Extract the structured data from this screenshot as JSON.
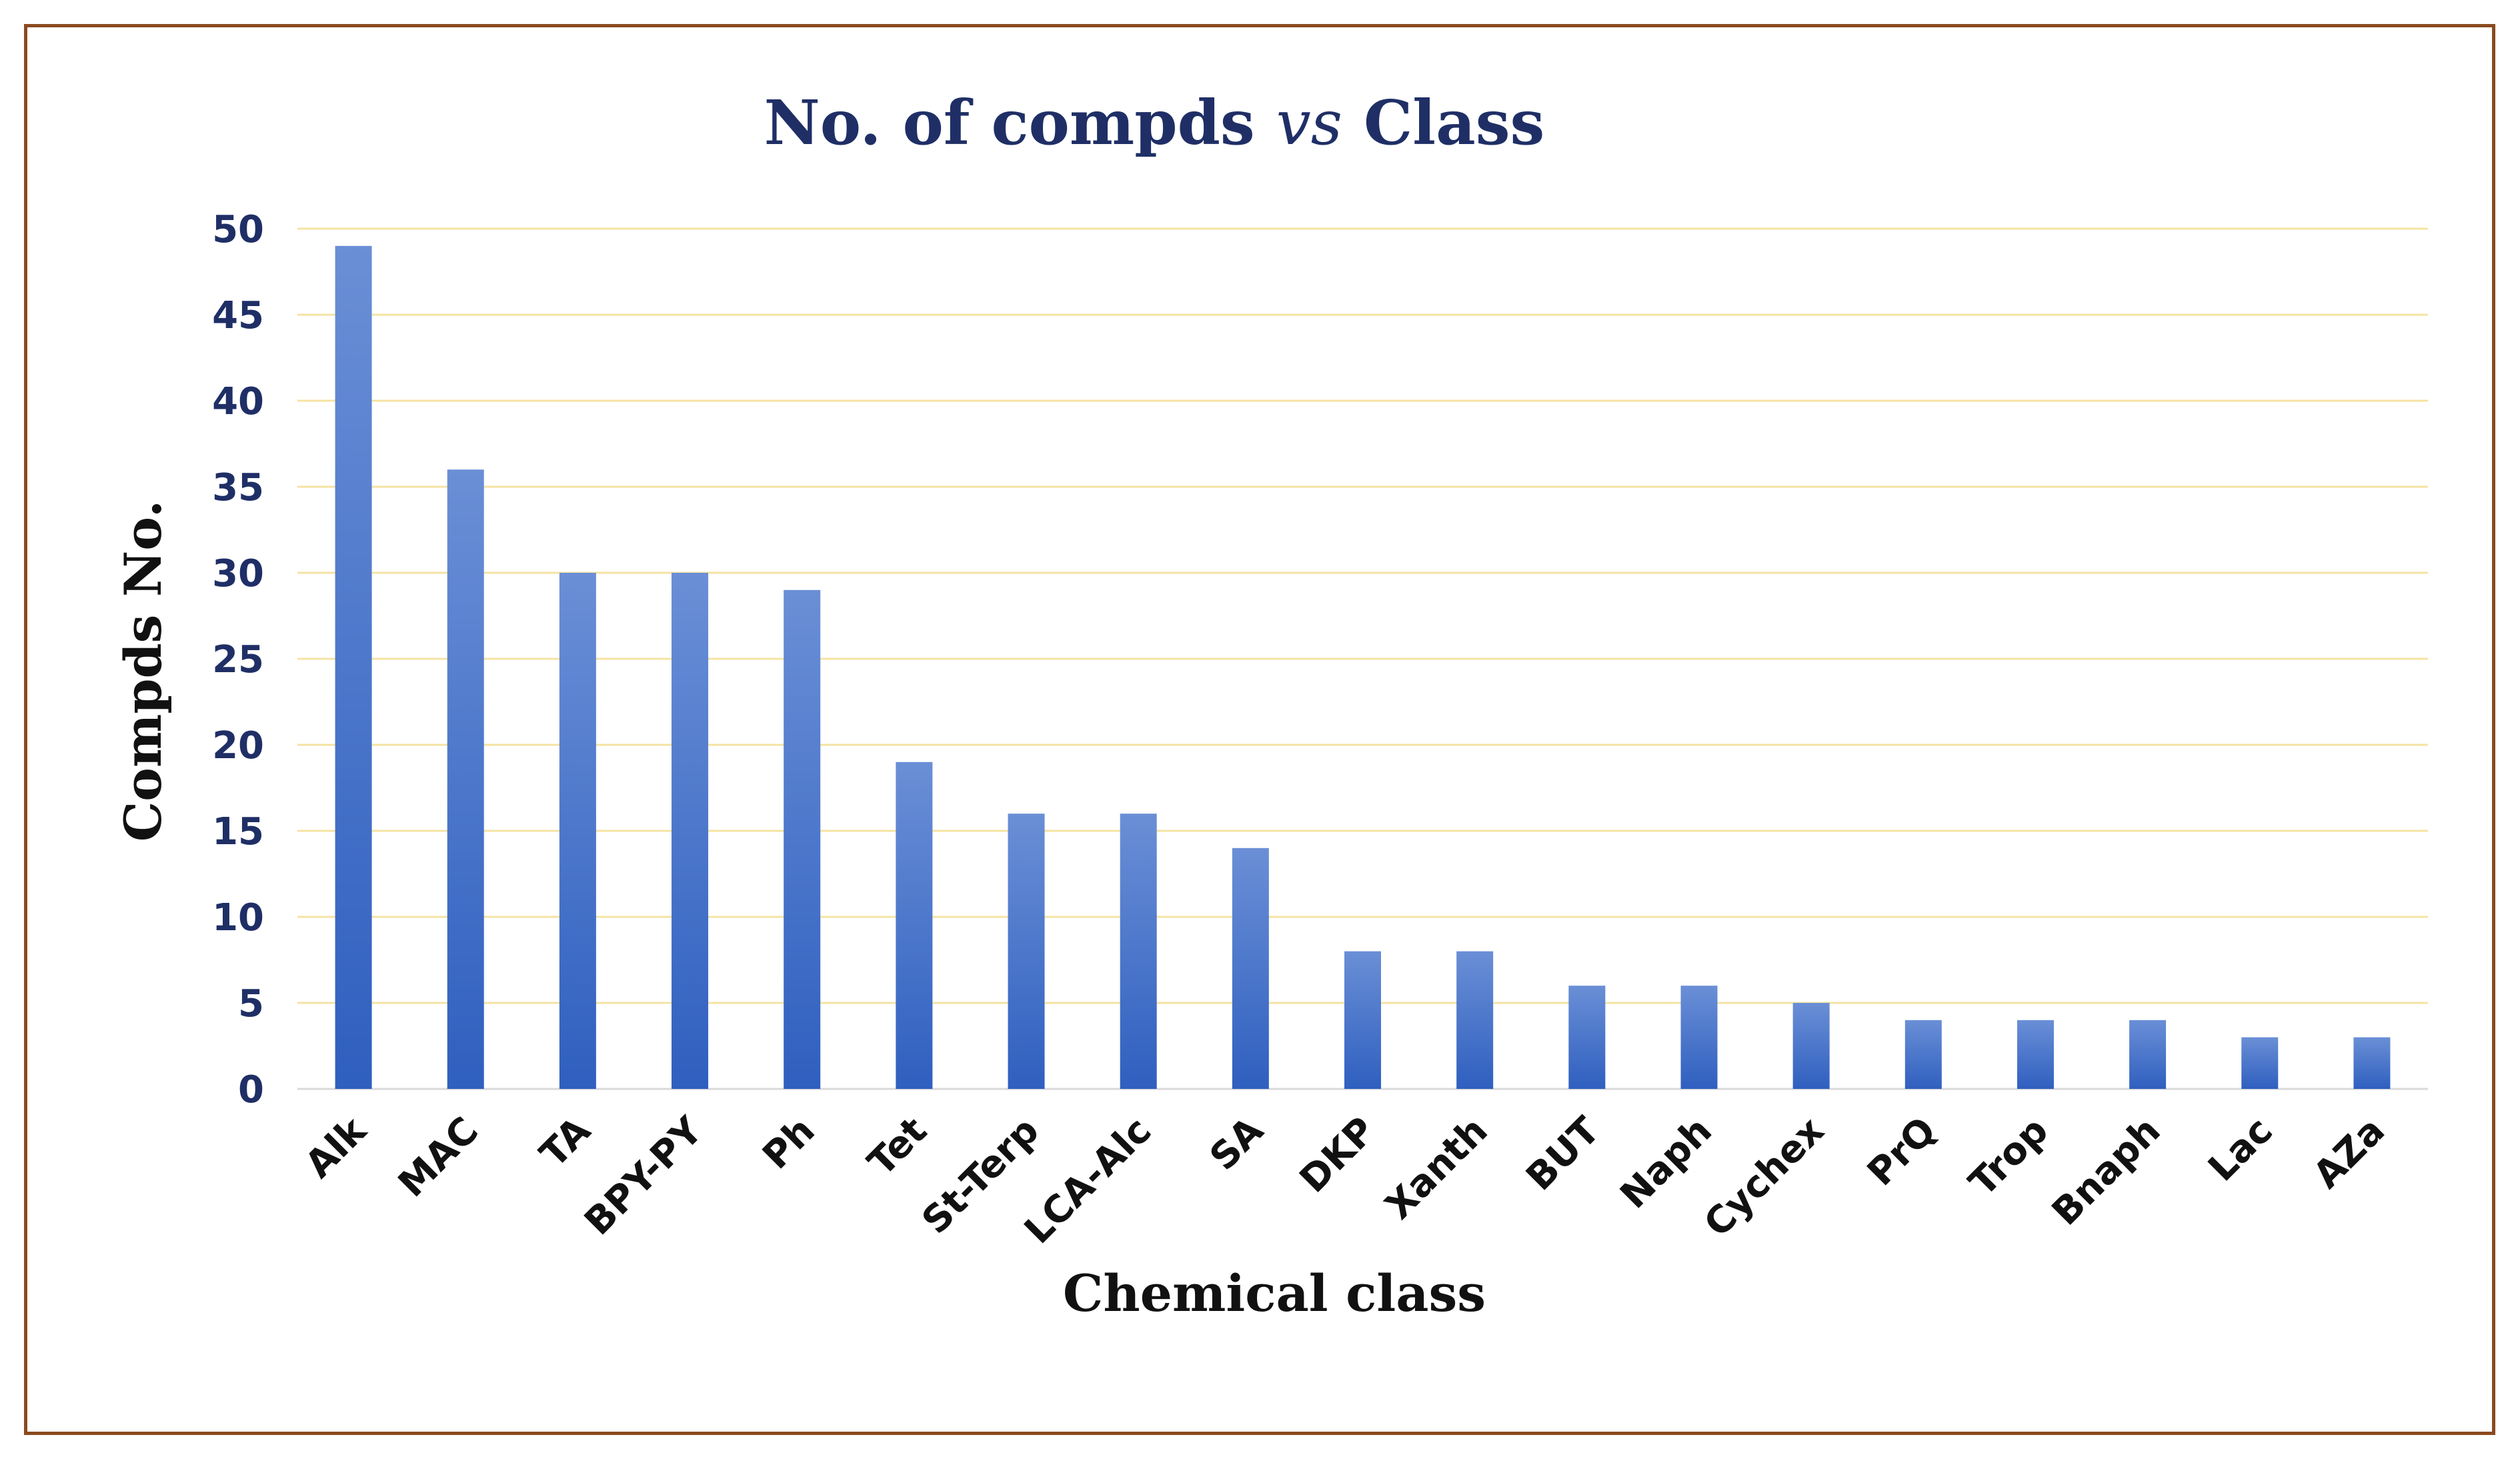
{
  "chart_data": {
    "type": "bar",
    "title": "No. of compds ",
    "title_italic": "vs",
    "title_suffix": " Class",
    "xlabel": "Chemical class",
    "ylabel": "Compds No.",
    "categories": [
      "Alk",
      "MAC",
      "TA",
      "BPY-PY",
      "Ph",
      "Tet",
      "St-Terp",
      "LCA-Alc",
      "SA",
      "DKP",
      "Xanth",
      "BUT",
      "Naph",
      "Cychex",
      "PrQ",
      "Trop",
      "Bnaph",
      "Lac",
      "AZa"
    ],
    "values": [
      49,
      36,
      30,
      30,
      29,
      19,
      16,
      16,
      14,
      8,
      8,
      6,
      6,
      5,
      4,
      4,
      4,
      3,
      3
    ],
    "ylim": [
      0,
      50
    ],
    "yticks": [
      "0",
      "5",
      "10",
      "15",
      "20",
      "25",
      "30",
      "35",
      "40",
      "45",
      "50"
    ],
    "grid": true,
    "legend": "none",
    "colors": {
      "bar_top": "#6a8fd6",
      "bar_bottom": "#2f5fbf",
      "grid": "#f5e3a3",
      "border": "#8a4a1f",
      "title": "#1f2f66"
    }
  }
}
